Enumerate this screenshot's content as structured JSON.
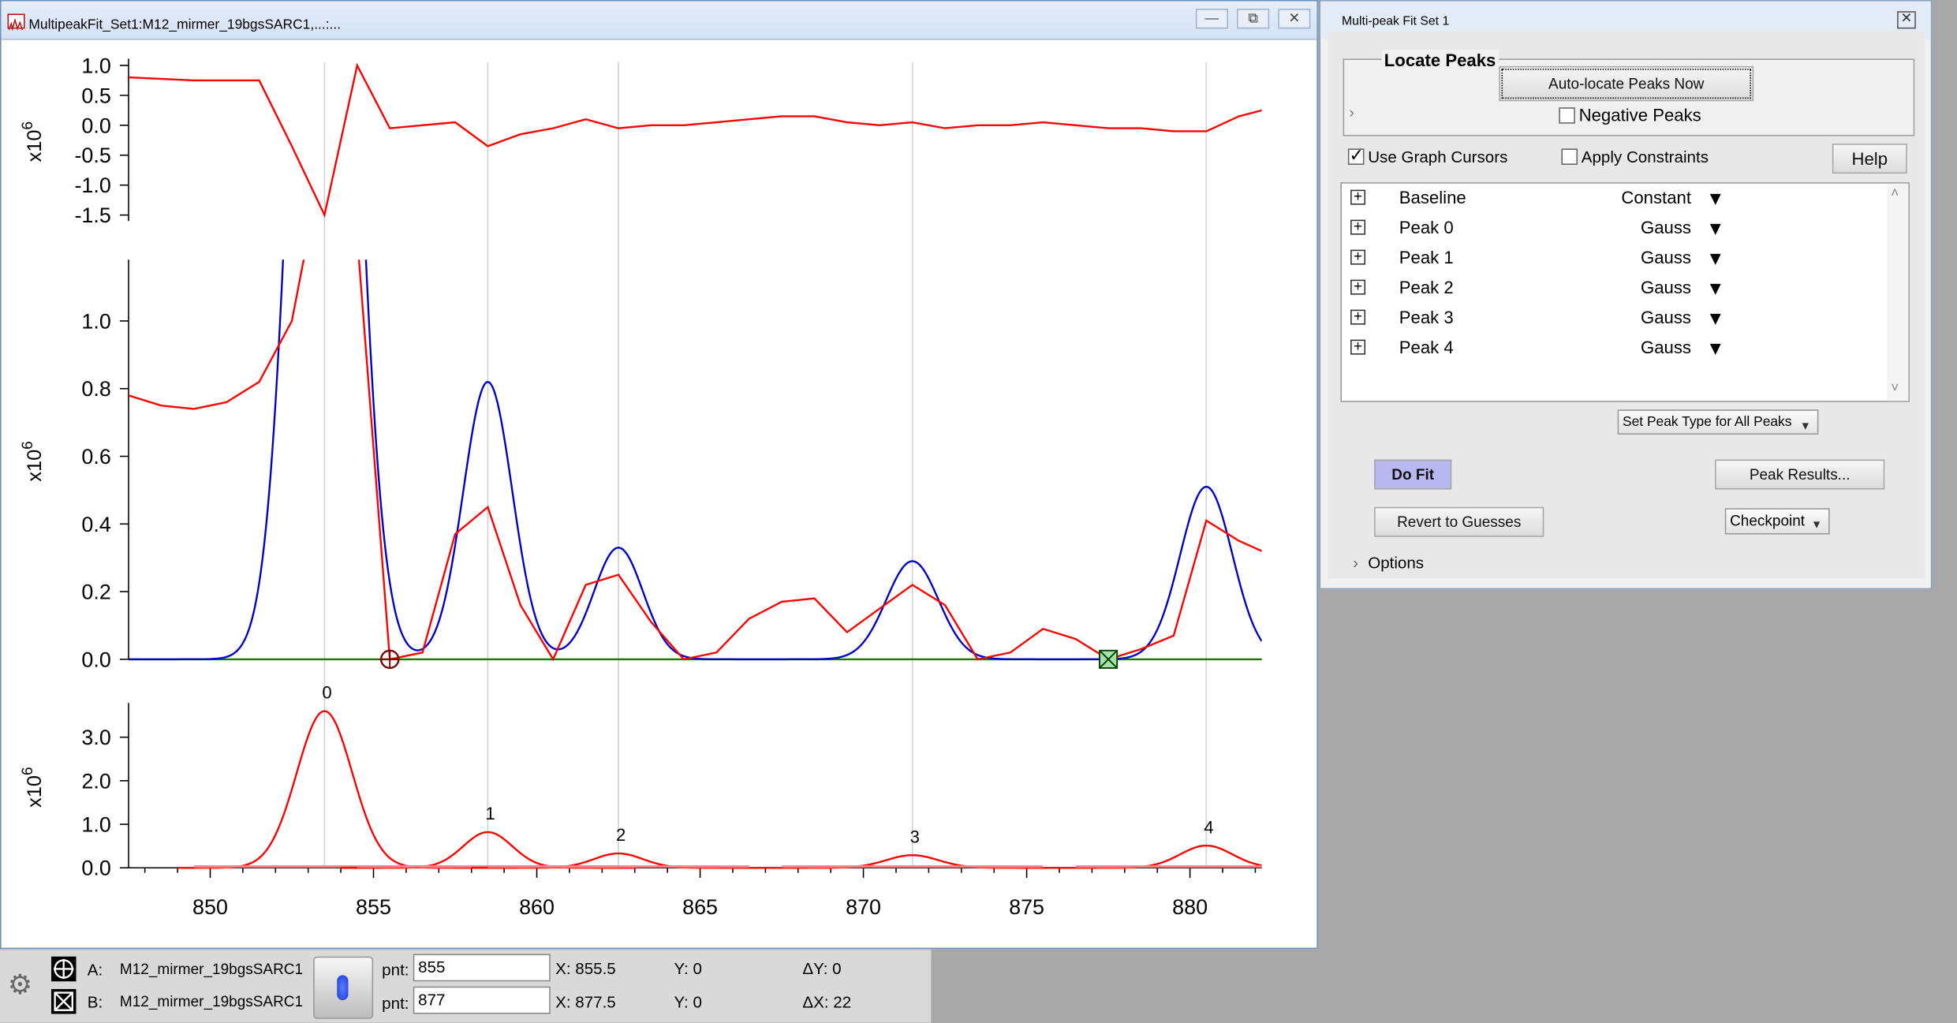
{
  "graph_window": {
    "title": "MultipeakFit_Set1:M12_mirmer_19bgsSARC1,...:...",
    "buttons": {
      "minimize": "—",
      "restore": "⧉",
      "close": "✕"
    }
  },
  "axes": {
    "exp_label": "x10",
    "exp_power": "6",
    "residual_ticks": [
      "1.0",
      "0.5",
      "0.0",
      "-0.5",
      "-1.0",
      "-1.5"
    ],
    "main_ticks": [
      "1.0",
      "0.8",
      "0.6",
      "0.4",
      "0.2",
      "0.0"
    ],
    "peaks_ticks": [
      "3.0",
      "2.0",
      "1.0",
      "0.0"
    ],
    "x_ticks": [
      "850",
      "855",
      "860",
      "865",
      "870",
      "875",
      "880"
    ]
  },
  "chart_data": {
    "type": "line",
    "x_range": [
      847.5,
      882.2
    ],
    "vlines": [
      853.5,
      858.5,
      862.5,
      871.5,
      880.5
    ],
    "residual": {
      "ylim": [
        -1.6,
        1.05
      ],
      "x": [
        847.5,
        849.5,
        851.5,
        852.5,
        853.5,
        854.5,
        855.5,
        856.5,
        857.5,
        858.5,
        859.5,
        860.5,
        861.5,
        862.5,
        863.5,
        864.5,
        865.5,
        866.5,
        867.5,
        868.5,
        869.5,
        870.5,
        871.5,
        872.5,
        873.5,
        874.5,
        875.5,
        876.5,
        877.5,
        878.5,
        879.5,
        880.5,
        881.5,
        882.2
      ],
      "y": [
        0.8,
        0.75,
        0.75,
        -0.35,
        -1.5,
        1.0,
        -0.05,
        0.0,
        0.05,
        -0.35,
        -0.15,
        -0.05,
        0.1,
        -0.05,
        0.0,
        0.0,
        0.05,
        0.1,
        0.15,
        0.15,
        0.05,
        0.0,
        0.05,
        -0.05,
        0.0,
        0.0,
        0.05,
        0.0,
        -0.05,
        -0.05,
        -0.1,
        -0.1,
        0.15,
        0.25
      ]
    },
    "main": {
      "ylim": [
        0,
        1.17
      ],
      "data": {
        "x": [
          847.5,
          848.5,
          849.5,
          850.5,
          851.5,
          852.5,
          853.0,
          854.5,
          855.5,
          856.5,
          857.5,
          858.5,
          859.5,
          860.5,
          861.5,
          862.5,
          863.5,
          864.5,
          865.5,
          866.5,
          867.5,
          868.5,
          869.5,
          870.5,
          871.5,
          872.5,
          873.5,
          874.5,
          875.5,
          876.5,
          877.5,
          878.5,
          879.5,
          880.5,
          881.5,
          882.2
        ],
        "y": [
          0.78,
          0.75,
          0.74,
          0.76,
          0.82,
          1.0,
          1.25,
          1.25,
          0.0,
          0.02,
          0.37,
          0.45,
          0.16,
          0.0,
          0.22,
          0.25,
          0.11,
          0.0,
          0.02,
          0.12,
          0.17,
          0.18,
          0.08,
          0.15,
          0.22,
          0.16,
          0.0,
          0.02,
          0.09,
          0.06,
          0.0,
          0.03,
          0.07,
          0.41,
          0.35,
          0.32
        ]
      },
      "baseline": 0.0,
      "fit_peaks": [
        {
          "center": 853.5,
          "amp": 3.6,
          "width": 0.85
        },
        {
          "center": 858.5,
          "amp": 0.82,
          "width": 0.75
        },
        {
          "center": 862.5,
          "amp": 0.33,
          "width": 0.75
        },
        {
          "center": 871.5,
          "amp": 0.29,
          "width": 0.8
        },
        {
          "center": 880.5,
          "amp": 0.51,
          "width": 0.8
        }
      ],
      "cursor_a_x": 855.5,
      "cursor_b_x": 877.5
    },
    "peaks": {
      "ylim": [
        0,
        3.7
      ],
      "labels": [
        "0",
        "1",
        "2",
        "3",
        "4"
      ]
    }
  },
  "cursor_bar": {
    "a_label": "A:",
    "b_label": "B:",
    "a_trace": "M12_mirmer_19bgsSARC1",
    "b_trace": "M12_mirmer_19bgsSARC1",
    "pnt_label": "pnt:",
    "a_pnt": "855",
    "b_pnt": "877",
    "a_x": "X: 855.5",
    "b_x": "X: 877.5",
    "a_y": "Y: 0",
    "b_y": "Y: 0",
    "dy": "ΔY: 0",
    "dx": "ΔX: 22"
  },
  "fit_panel": {
    "title": "Multi-peak Fit Set 1",
    "locate_title": "Locate Peaks",
    "auto_locate": "Auto-locate Peaks Now",
    "negative_peaks": "Negative Peaks",
    "use_cursors": "Use Graph Cursors",
    "apply_constraints": "Apply Constraints",
    "help": "Help",
    "rows": [
      {
        "name": "Baseline",
        "type": "Constant"
      },
      {
        "name": "Peak 0",
        "type": "Gauss"
      },
      {
        "name": "Peak 1",
        "type": "Gauss"
      },
      {
        "name": "Peak 2",
        "type": "Gauss"
      },
      {
        "name": "Peak 3",
        "type": "Gauss"
      },
      {
        "name": "Peak 4",
        "type": "Gauss"
      }
    ],
    "set_peak_type": "Set Peak Type for All Peaks",
    "do_fit": "Do Fit",
    "peak_results": "Peak Results...",
    "revert": "Revert to Guesses",
    "checkpoint": "Checkpoint",
    "options": "Options"
  },
  "colors": {
    "data": "#ff0000",
    "fit": "#0000c8",
    "baseline": "#008000",
    "accent": "#b8b8ee"
  }
}
